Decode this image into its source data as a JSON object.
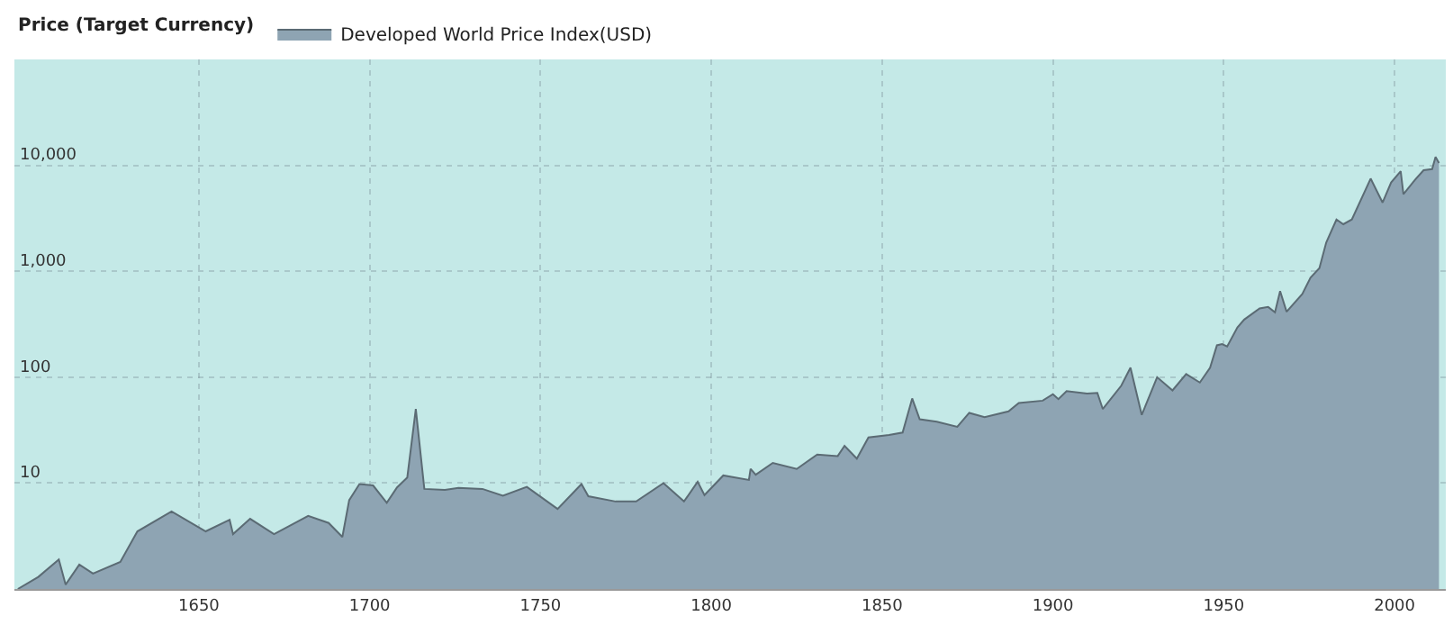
{
  "chart_data": {
    "type": "area",
    "legend_title": "Price (Target Currency)",
    "legend": "top left",
    "log": true,
    "grid": true,
    "xlim": [
      1596,
      2015
    ],
    "xticks": [
      1650,
      1700,
      1750,
      1800,
      1850,
      1900,
      1950,
      2000
    ],
    "ylim": [
      1,
      100000
    ],
    "yticks": [
      10,
      100,
      {
        "value": 1000,
        "label": "1,000"
      },
      {
        "value": 10000,
        "label": "10,000"
      }
    ],
    "x": [
      1597,
      1603,
      1609,
      1611,
      1615,
      1619,
      1627,
      1632,
      1642,
      1652,
      1659,
      1660,
      1665,
      1672,
      1682,
      1688,
      1692,
      1694,
      1697,
      1701,
      1705,
      1708,
      1711,
      1713.5,
      1716,
      1722,
      1726,
      1733,
      1739,
      1746,
      1755,
      1762,
      1764,
      1772,
      1778,
      1786,
      1792,
      1796,
      1798,
      1803.5,
      1811,
      1811.5,
      1813,
      1818,
      1825,
      1831,
      1837,
      1839,
      1842.6,
      1846,
      1852,
      1856,
      1858.8,
      1861,
      1866,
      1872,
      1875.5,
      1880,
      1887,
      1890,
      1897,
      1900,
      1901.6,
      1904,
      1910,
      1913,
      1914.6,
      1920,
      1922.7,
      1926,
      1930.5,
      1935,
      1939,
      1943,
      1946,
      1948,
      1949.5,
      1951,
      1954,
      1956,
      1960.5,
      1963,
      1965,
      1966.5,
      1968.4,
      1973,
      1975.4,
      1978,
      1980,
      1983,
      1985,
      1987.5,
      1993,
      1996.5,
      1999,
      2001.8,
      2002.6,
      2006,
      2008.5,
      2011,
      2012,
      2013
    ],
    "series": [
      {
        "name": "Developed World Price Index(USD)",
        "color": "#8ea4b3",
        "values": [
          1.0,
          1.3,
          1.9,
          1.1,
          1.7,
          1.4,
          1.8,
          3.5,
          5.4,
          3.5,
          4.5,
          3.3,
          4.6,
          3.3,
          4.9,
          4.2,
          3.1,
          6.9,
          9.8,
          9.5,
          6.5,
          9.1,
          11.3,
          50,
          8.8,
          8.6,
          9,
          8.8,
          7.6,
          9.2,
          5.7,
          9.8,
          7.5,
          6.7,
          6.7,
          10,
          6.7,
          10.3,
          7.7,
          11.8,
          10.7,
          13.6,
          12,
          15.5,
          13.6,
          18.6,
          18,
          22.5,
          17,
          27,
          28.5,
          30,
          63,
          40,
          38,
          34,
          46,
          42,
          47.5,
          57,
          60,
          69,
          62,
          74,
          70,
          71,
          50,
          83,
          123,
          44,
          100,
          75,
          107,
          89,
          123,
          200,
          205,
          195,
          295,
          350,
          445,
          460,
          410,
          650,
          415,
          610,
          870,
          1070,
          1870,
          3080,
          2780,
          3080,
          7500,
          4450,
          6900,
          8800,
          5350,
          7300,
          9000,
          9200,
          12000,
          10500
        ]
      }
    ]
  }
}
